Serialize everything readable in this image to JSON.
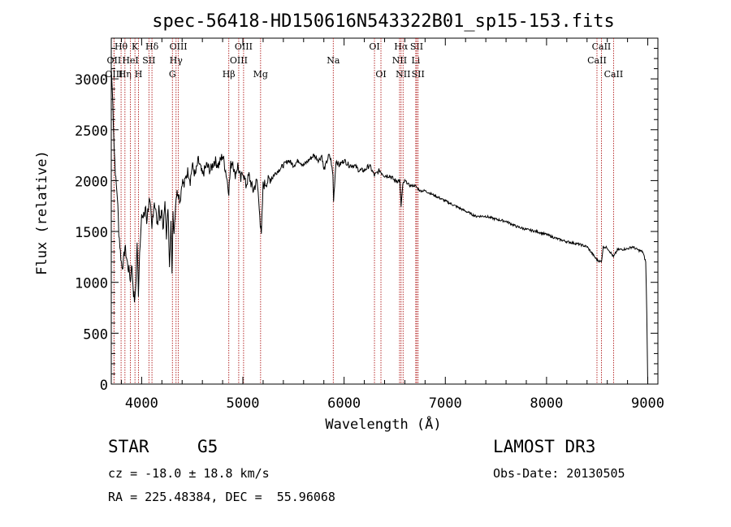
{
  "chart_data": {
    "type": "line",
    "title": "spec-56418-HD150616N543322B01_sp15-153.fits",
    "xlabel": "Wavelength (Å)",
    "ylabel": "Flux (relative)",
    "xlim": [
      3700,
      9100
    ],
    "ylim": [
      0,
      3400
    ],
    "xticks": [
      4000,
      5000,
      6000,
      7000,
      8000,
      9000
    ],
    "yticks": [
      0,
      500,
      1000,
      1500,
      2000,
      2500,
      3000
    ],
    "series": [
      {
        "name": "flux",
        "x": [
          3700,
          3710,
          3720,
          3730,
          3745,
          3760,
          3775,
          3790,
          3805,
          3820,
          3835,
          3850,
          3865,
          3880,
          3890,
          3900,
          3910,
          3920,
          3933,
          3945,
          3955,
          3968,
          3980,
          3990,
          4000,
          4010,
          4020,
          4030,
          4040,
          4050,
          4060,
          4075,
          4090,
          4101,
          4110,
          4125,
          4140,
          4155,
          4170,
          4185,
          4200,
          4215,
          4230,
          4245,
          4260,
          4275,
          4290,
          4300,
          4310,
          4320,
          4340,
          4360,
          4380,
          4400,
          4420,
          4440,
          4460,
          4480,
          4500,
          4530,
          4560,
          4600,
          4640,
          4680,
          4720,
          4760,
          4800,
          4830,
          4861,
          4880,
          4900,
          4920,
          4950,
          4980,
          5000,
          5030,
          5060,
          5100,
          5140,
          5167,
          5172,
          5183,
          5200,
          5250,
          5300,
          5350,
          5400,
          5450,
          5500,
          5550,
          5600,
          5650,
          5700,
          5750,
          5780,
          5800,
          5850,
          5870,
          5890,
          5896,
          5920,
          5950,
          6000,
          6050,
          6100,
          6150,
          6200,
          6250,
          6300,
          6350,
          6400,
          6450,
          6500,
          6550,
          6563,
          6580,
          6600,
          6650,
          6700,
          6750,
          6800,
          6900,
          7000,
          7100,
          7200,
          7300,
          7400,
          7500,
          7600,
          7700,
          7800,
          7900,
          8000,
          8100,
          8200,
          8300,
          8400,
          8498,
          8542,
          8560,
          8600,
          8662,
          8700,
          8800,
          8850,
          8900,
          8950,
          8980,
          8990,
          9000
        ],
        "values": [
          3100,
          2900,
          2600,
          2300,
          2000,
          1850,
          1500,
          1300,
          1150,
          1200,
          1350,
          1250,
          1150,
          1100,
          1000,
          1200,
          1050,
          900,
          800,
          1050,
          1400,
          900,
          1300,
          1500,
          1650,
          1600,
          1700,
          1650,
          1750,
          1600,
          1700,
          1800,
          1700,
          1500,
          1650,
          1800,
          1700,
          1550,
          1750,
          1600,
          1700,
          1500,
          1850,
          1400,
          1750,
          1200,
          1600,
          1050,
          1700,
          1500,
          1850,
          1900,
          1800,
          2000,
          1950,
          2050,
          2100,
          2000,
          2150,
          2050,
          2200,
          2050,
          2150,
          2100,
          2200,
          2150,
          2250,
          2100,
          1900,
          2150,
          2200,
          2050,
          2150,
          2000,
          2100,
          1950,
          2050,
          1900,
          2000,
          1700,
          1550,
          1450,
          1950,
          2000,
          2050,
          2100,
          2150,
          2200,
          2150,
          2200,
          2150,
          2200,
          2250,
          2200,
          2250,
          2100,
          2250,
          2200,
          2050,
          1800,
          2200,
          2150,
          2200,
          2150,
          2150,
          2100,
          2100,
          2150,
          2050,
          2100,
          2050,
          2050,
          2000,
          2000,
          1750,
          1950,
          2000,
          1950,
          1950,
          1900,
          1900,
          1850,
          1800,
          1750,
          1700,
          1650,
          1650,
          1620,
          1600,
          1550,
          1520,
          1500,
          1470,
          1430,
          1400,
          1380,
          1350,
          1220,
          1200,
          1350,
          1340,
          1250,
          1320,
          1330,
          1350,
          1320,
          1300,
          1200,
          700,
          0
        ]
      }
    ],
    "line_markers": [
      {
        "label": "Hθ",
        "x": 3797,
        "row": 1
      },
      {
        "label": "OII",
        "x": 3727,
        "row": 2
      },
      {
        "label": "OIII",
        "x": 3727,
        "row": 3
      },
      {
        "label": "Hη",
        "x": 3835,
        "row": 3
      },
      {
        "label": "HeI",
        "x": 3889,
        "row": 2
      },
      {
        "label": "K",
        "x": 3934,
        "row": 1
      },
      {
        "label": "SII",
        "x": 4072,
        "row": 2
      },
      {
        "label": "H",
        "x": 3969,
        "row": 3
      },
      {
        "label": "Hδ",
        "x": 4102,
        "row": 1
      },
      {
        "label": "OIII",
        "x": 4363,
        "row": 1
      },
      {
        "label": "Hγ",
        "x": 4340,
        "row": 2
      },
      {
        "label": "G",
        "x": 4304,
        "row": 3
      },
      {
        "label": "OIII",
        "x": 5007,
        "row": 1
      },
      {
        "label": "OIII",
        "x": 4959,
        "row": 2
      },
      {
        "label": "Hβ",
        "x": 4861,
        "row": 3
      },
      {
        "label": "Mg",
        "x": 5175,
        "row": 3
      },
      {
        "label": "Na",
        "x": 5893,
        "row": 2
      },
      {
        "label": "OI",
        "x": 6300,
        "row": 1
      },
      {
        "label": "OI",
        "x": 6364,
        "row": 3
      },
      {
        "label": "Hα",
        "x": 6563,
        "row": 1
      },
      {
        "label": "SII",
        "x": 6717,
        "row": 1
      },
      {
        "label": "NII",
        "x": 6548,
        "row": 2
      },
      {
        "label": "Li",
        "x": 6708,
        "row": 2
      },
      {
        "label": "NII",
        "x": 6583,
        "row": 3
      },
      {
        "label": "SII",
        "x": 6731,
        "row": 3
      },
      {
        "label": "CaII",
        "x": 8542,
        "row": 1
      },
      {
        "label": "CaII",
        "x": 8498,
        "row": 2
      },
      {
        "label": "CaII",
        "x": 8662,
        "row": 3
      }
    ]
  },
  "info": {
    "object_class": "STAR",
    "subclass": "G5",
    "survey": "LAMOST DR3",
    "redshift_text": "cz = -18.0 ± 18.8 km/s",
    "obs_date_text": "Obs-Date: 20130505",
    "coords_text": "RA = 225.48384, DEC =  55.96068"
  }
}
